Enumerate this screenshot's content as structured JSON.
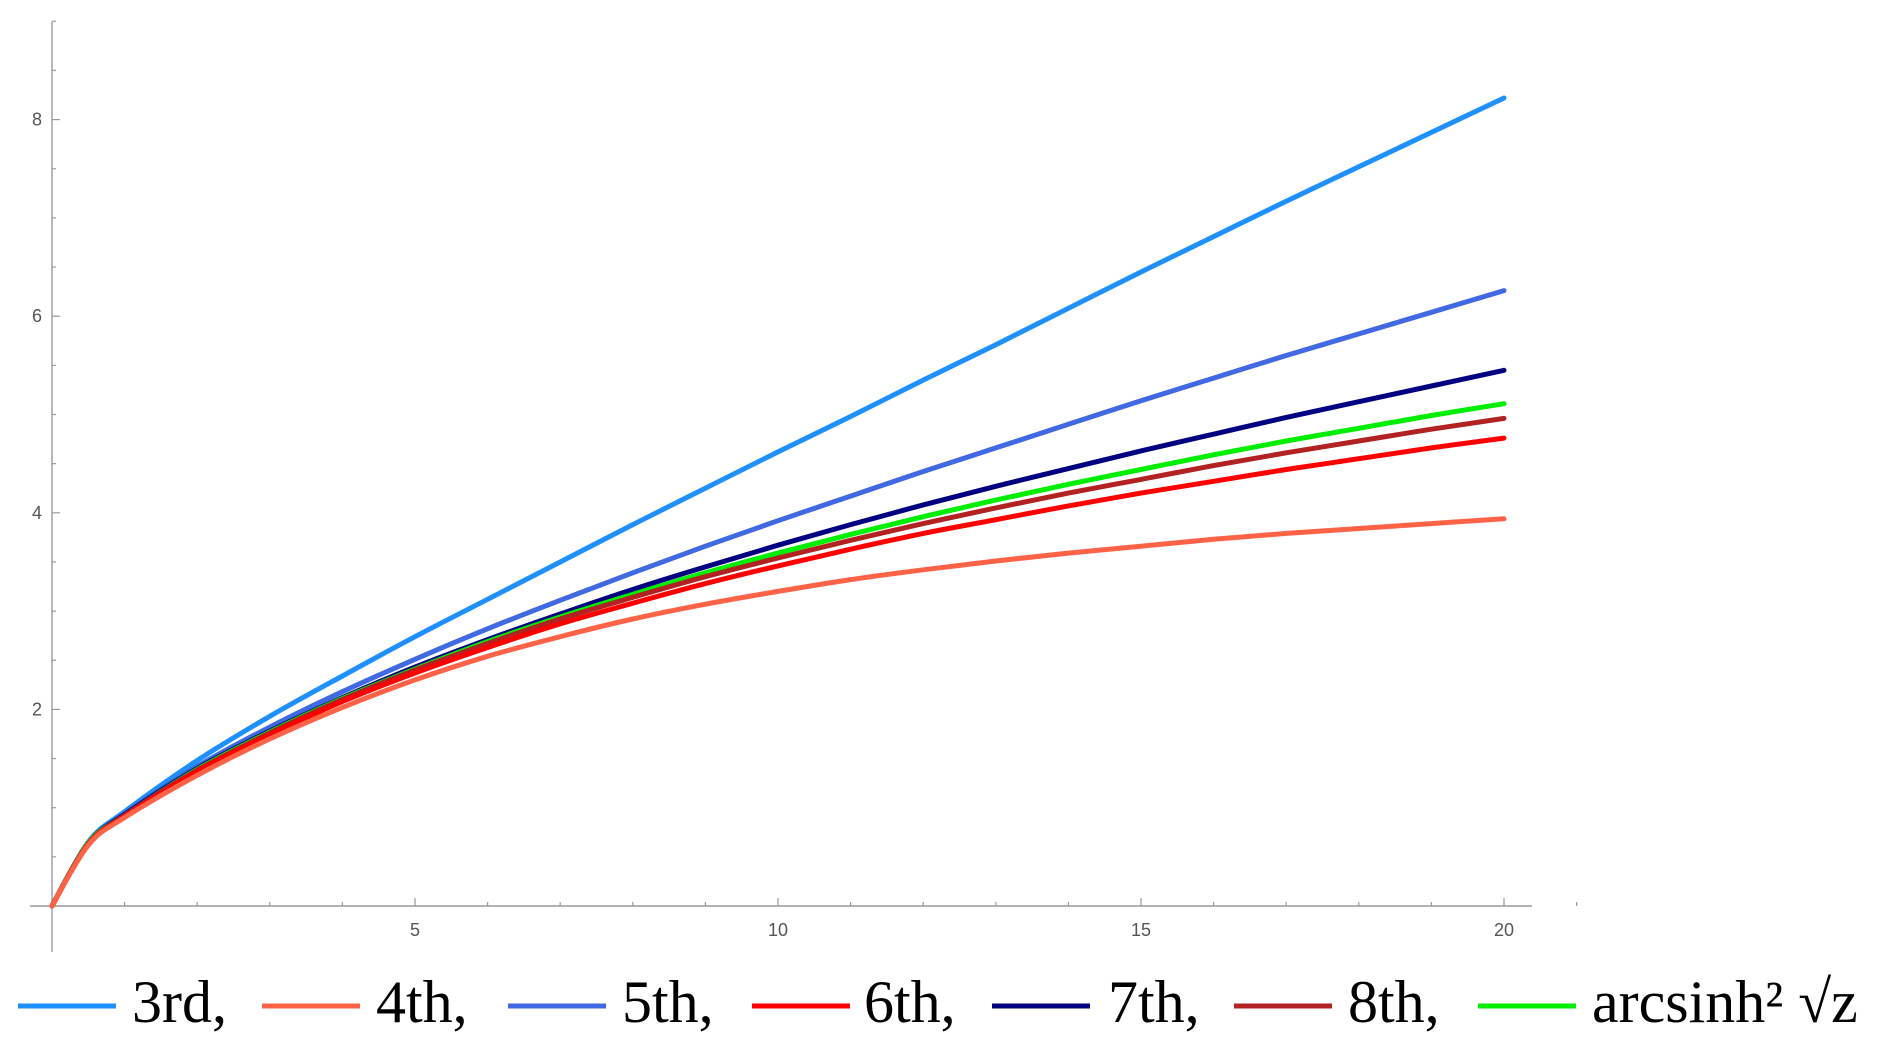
{
  "chart_data": {
    "type": "line",
    "title": "",
    "xlabel": "",
    "ylabel": "",
    "xlim": [
      0,
      21
    ],
    "ylim": [
      0,
      9
    ],
    "grid": false,
    "legend_placement": "bottom",
    "x_ticks": [
      5,
      10,
      15,
      20
    ],
    "y_ticks": [
      2,
      4,
      6,
      8
    ],
    "x_minor_step": 1,
    "y_minor_step": 0.5,
    "x": [
      0,
      0.5,
      1,
      2,
      3,
      4,
      5,
      6,
      7,
      8,
      9,
      10,
      11,
      12,
      13,
      14,
      15,
      16,
      17,
      18,
      19,
      20
    ],
    "series": [
      {
        "name": "3rd,",
        "color": "#1e90ff",
        "values": [
          0,
          0.65,
          0.96,
          1.48,
          1.93,
          2.34,
          2.74,
          3.12,
          3.5,
          3.88,
          4.25,
          4.62,
          4.98,
          5.35,
          5.71,
          6.08,
          6.45,
          6.81,
          7.17,
          7.52,
          7.87,
          8.22
        ]
      },
      {
        "name": "4th,",
        "color": "#ff6347",
        "values": [
          0,
          0.62,
          0.9,
          1.33,
          1.7,
          2.02,
          2.3,
          2.54,
          2.74,
          2.92,
          3.07,
          3.2,
          3.32,
          3.42,
          3.51,
          3.59,
          3.66,
          3.73,
          3.79,
          3.84,
          3.89,
          3.94
        ]
      },
      {
        "name": "5th,",
        "color": "#4169e1",
        "values": [
          0,
          0.64,
          0.94,
          1.42,
          1.82,
          2.18,
          2.51,
          2.82,
          3.11,
          3.39,
          3.66,
          3.92,
          4.17,
          4.42,
          4.66,
          4.9,
          5.14,
          5.37,
          5.6,
          5.82,
          6.04,
          6.26
        ]
      },
      {
        "name": "6th,",
        "color": "#ff0000",
        "values": [
          0,
          0.63,
          0.91,
          1.37,
          1.74,
          2.08,
          2.37,
          2.63,
          2.87,
          3.08,
          3.28,
          3.46,
          3.63,
          3.79,
          3.93,
          4.07,
          4.2,
          4.32,
          4.44,
          4.55,
          4.66,
          4.76
        ]
      },
      {
        "name": "7th,",
        "color": "#000080",
        "values": [
          0,
          0.64,
          0.93,
          1.4,
          1.78,
          2.12,
          2.43,
          2.71,
          2.97,
          3.22,
          3.45,
          3.67,
          3.88,
          4.08,
          4.27,
          4.45,
          4.63,
          4.8,
          4.97,
          5.13,
          5.29,
          5.45
        ]
      },
      {
        "name": "8th,",
        "color": "#b22222",
        "values": [
          0,
          0.63,
          0.92,
          1.38,
          1.76,
          2.1,
          2.4,
          2.67,
          2.92,
          3.14,
          3.35,
          3.54,
          3.72,
          3.89,
          4.05,
          4.2,
          4.34,
          4.48,
          4.61,
          4.73,
          4.85,
          4.96
        ]
      },
      {
        "name": "arcsinh² √z",
        "color": "#00ee00",
        "values": [
          0,
          0.64,
          0.92,
          1.39,
          1.77,
          2.11,
          2.41,
          2.69,
          2.94,
          3.17,
          3.39,
          3.59,
          3.78,
          3.96,
          4.13,
          4.29,
          4.44,
          4.59,
          4.73,
          4.86,
          4.99,
          5.11
        ]
      }
    ]
  }
}
